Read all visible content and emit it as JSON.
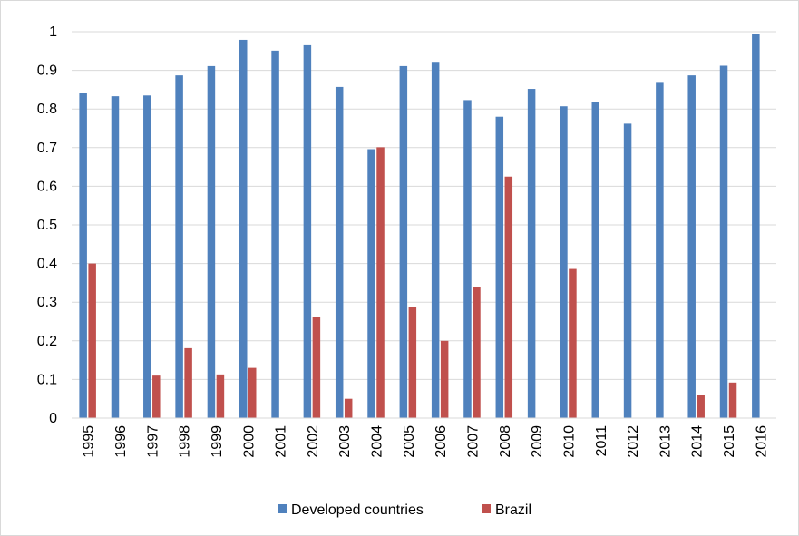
{
  "chart_data": {
    "type": "bar",
    "title": "",
    "xlabel": "",
    "ylabel": "",
    "ylim": [
      0,
      1
    ],
    "y_ticks": [
      "0",
      "0.1",
      "0.2",
      "0.3",
      "0.4",
      "0.5",
      "0.6",
      "0.7",
      "0.8",
      "0.9",
      "1"
    ],
    "grid": true,
    "legend_position": "bottom",
    "categories": [
      "1995",
      "1996",
      "1997",
      "1998",
      "1999",
      "2000",
      "2001",
      "2002",
      "2003",
      "2004",
      "2005",
      "2006",
      "2007",
      "2008",
      "2009",
      "2010",
      "2011",
      "2012",
      "2013",
      "2014",
      "2015",
      "2016"
    ],
    "series": [
      {
        "name": "Developed countries",
        "color": "#4f81bd",
        "values": [
          0.842,
          0.833,
          0.835,
          0.887,
          0.911,
          0.979,
          0.951,
          0.965,
          0.857,
          0.696,
          0.911,
          0.922,
          0.823,
          0.78,
          0.852,
          0.807,
          0.818,
          0.762,
          0.87,
          0.887,
          0.912,
          0.995
        ]
      },
      {
        "name": "Brazil",
        "color": "#c0504d",
        "values": [
          0.4,
          0,
          0.11,
          0.181,
          0.113,
          0.13,
          0,
          0.261,
          0.05,
          0.701,
          0.287,
          0.2,
          0.338,
          0.625,
          0,
          0.386,
          0,
          0,
          0,
          0.059,
          0.092,
          0
        ]
      }
    ]
  }
}
